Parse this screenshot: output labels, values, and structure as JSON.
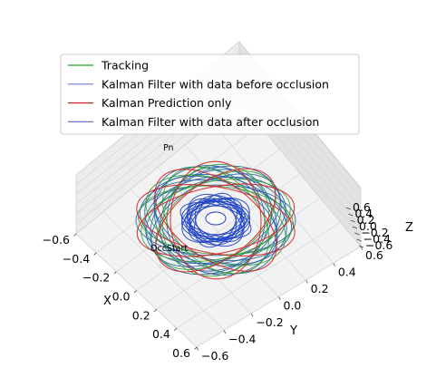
{
  "chart_data": {
    "type": "line",
    "projection": "3d",
    "title": "",
    "axes": {
      "x": {
        "label": "X",
        "ticks": [
          "−0.6",
          "−0.4",
          "−0.2",
          "0.0",
          "0.2",
          "0.4",
          "0.6"
        ],
        "lim": [
          -0.6,
          0.6
        ]
      },
      "y": {
        "label": "Y",
        "ticks": [
          "−0.6",
          "−0.4",
          "−0.2",
          "0.0",
          "0.2",
          "0.4",
          "0.6"
        ],
        "lim": [
          -0.6,
          0.6
        ]
      },
      "z": {
        "label": "Z",
        "ticks": [
          "−0.6",
          "−0.4",
          "−0.2",
          "0.0",
          "0.2",
          "0.4",
          "0.6"
        ],
        "lim": [
          -0.6,
          0.6
        ]
      }
    },
    "grid": true,
    "legend": {
      "position": "upper-left",
      "entries": [
        {
          "label": "Tracking",
          "color": "#2ca02c"
        },
        {
          "label": "Kalman Filter with data before occlusion",
          "color": "#6a78d6"
        },
        {
          "label": "Kalman Prediction only",
          "color": "#d62728"
        },
        {
          "label": "Kalman Filter with data after occlusion",
          "color": "#6a78d6"
        }
      ]
    },
    "annotations": [
      {
        "text": "Pn",
        "attached_to": "Kalman Prediction only"
      },
      {
        "text": "OccStart",
        "attached_to": "Tracking"
      }
    ],
    "series": [
      {
        "name": "Tracking",
        "color": "#2ca02c",
        "shape": "precessing ellipses around origin, radius 0.15–0.45"
      },
      {
        "name": "Kalman Filter with data before occlusion",
        "color": "#1f5fa0",
        "shape": "precessing ellipses around origin, radius 0.15–0.45"
      },
      {
        "name": "Kalman Prediction only",
        "color": "#d62728",
        "shape": "a few large ellipses around origin, radius ~0.45"
      },
      {
        "name": "Kalman Filter with data after occlusion",
        "color": "#1a3fc4",
        "shape": "dense inner orbits, radius < 0.15"
      }
    ]
  }
}
